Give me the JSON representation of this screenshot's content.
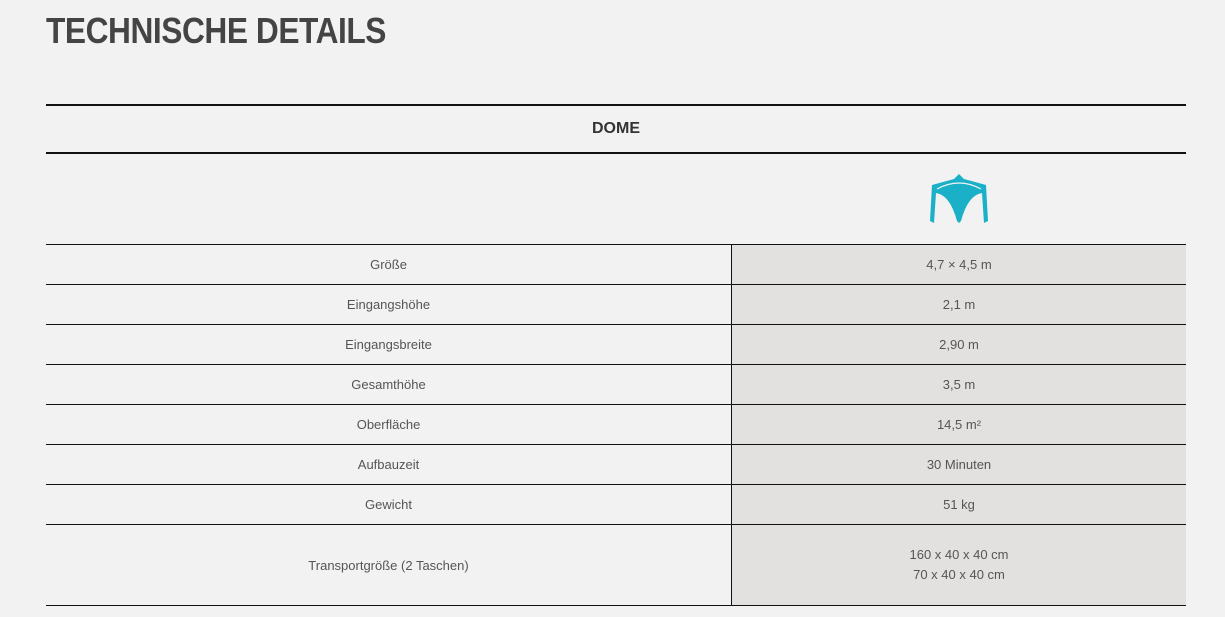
{
  "title": "TECHNISCHE DETAILS",
  "table": {
    "header": "DOME",
    "icon": "dome-tent-icon",
    "icon_color": "#1ab0c8",
    "rows": [
      {
        "label": "Größe",
        "value": "4,7 × 4,5 m"
      },
      {
        "label": "Eingangshöhe",
        "value": "2,1 m"
      },
      {
        "label": "Eingangsbreite",
        "value": "2,90 m"
      },
      {
        "label": "Gesamthöhe",
        "value": "3,5 m"
      },
      {
        "label": "Oberfläche",
        "value": "14,5 m²"
      },
      {
        "label": "Aufbauzeit",
        "value": "30 Minuten"
      },
      {
        "label": "Gewicht",
        "value": "51 kg"
      }
    ],
    "transport": {
      "label": "Transportgröße (2 Taschen)",
      "value_1": "160 x 40 x 40 cm",
      "value_2": "70 x 40 x 40 cm"
    }
  }
}
